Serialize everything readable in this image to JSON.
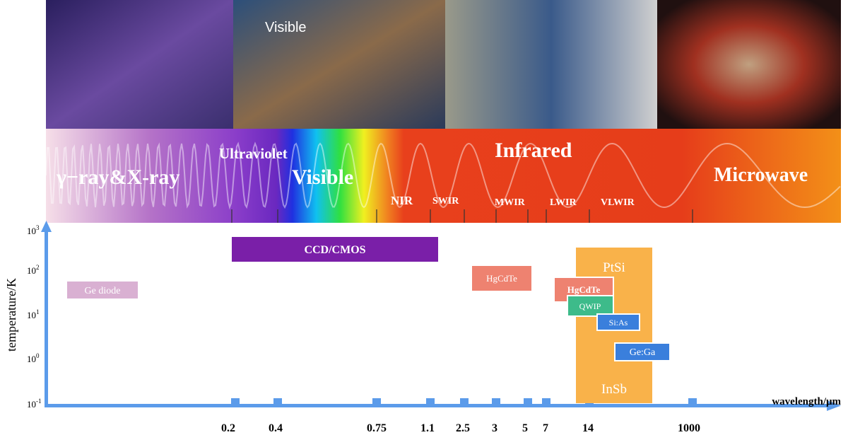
{
  "image_caption": "Visible",
  "bands": [
    "γ−ray&X-ray",
    "Ultraviolet",
    "Visible",
    "Infrared",
    "Microwave"
  ],
  "subbands": [
    "NIR",
    "SWIR",
    "MWIR",
    "LWIR",
    "VLWIR"
  ],
  "axes": {
    "y_label": "temperature/K",
    "x_label": "wavelength/μm",
    "x_ticks": [
      "0.2",
      "0.4",
      "0.75",
      "1.1",
      "2.5",
      "3",
      "5",
      "7",
      "14",
      "1000"
    ],
    "y_ticks": [
      {
        "base": "10",
        "exponent": "3"
      },
      {
        "base": "10",
        "exponent": "2"
      },
      {
        "base": "10",
        "exponent": "1"
      },
      {
        "base": "10",
        "exponent": "0"
      },
      {
        "base": "10",
        "exponent": "-1"
      }
    ]
  },
  "detectors": [
    "Ge diode",
    "CCD/CMOS",
    "HgCdTe",
    "PtSi",
    "InSb",
    "HgCdTe",
    "QWIP",
    "Si:As",
    "Ge:Ga"
  ]
}
